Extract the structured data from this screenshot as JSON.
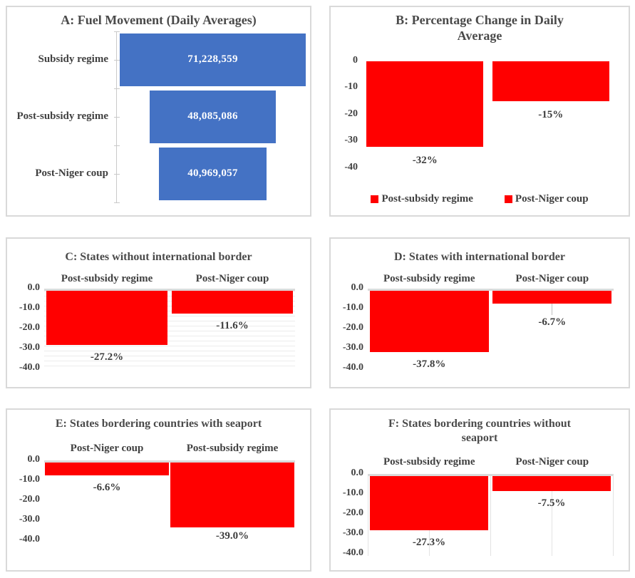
{
  "colors": {
    "bar_blue": "#4472C4",
    "bar_red": "#FF0000",
    "text_gray": "#404040",
    "panel_border": "#D9D9D9"
  },
  "chart_data": [
    {
      "id": "A",
      "type": "funnel",
      "title": "A: Fuel Movement (Daily Averages)",
      "categories": [
        "Subsidy regime",
        "Post-subsidy regime",
        "Post-Niger coup"
      ],
      "values": [
        71228559,
        48085086,
        40969057
      ],
      "value_labels": [
        "71,228,559",
        "48,085,086",
        "40,969,057"
      ],
      "bar_color": "#4472C4",
      "grid": "off",
      "legend_position": "none"
    },
    {
      "id": "B",
      "type": "bar",
      "title": "B: Percentage Change in Daily Average",
      "categories": [
        "Post-subsidy regime",
        "Post-Niger coup"
      ],
      "values": [
        -32,
        -15
      ],
      "value_labels": [
        "-32%",
        "-15%"
      ],
      "y_ticks": [
        "0",
        "-10",
        "-20",
        "-30",
        "-40"
      ],
      "ylim": [
        0,
        -40
      ],
      "ylabel": "",
      "xlabel": "",
      "legend": [
        "Post-subsidy regime",
        "Post-Niger coup"
      ],
      "legend_position": "bottom",
      "bar_color": "#FF0000",
      "grid": "off"
    },
    {
      "id": "C",
      "type": "bar",
      "title": "C: States without international border",
      "categories": [
        "Post-subsidy regime",
        "Post-Niger coup"
      ],
      "values": [
        -27.2,
        -11.6
      ],
      "value_labels": [
        "-27.2%",
        "-11.6%"
      ],
      "y_ticks": [
        "0.0",
        "-10.0",
        "-20.0",
        "-30.0",
        "-40.0"
      ],
      "ylim": [
        0,
        -40
      ],
      "ylabel": "",
      "xlabel": "",
      "legend_position": "none",
      "bar_color": "#FF0000",
      "grid": "horizontal-minor"
    },
    {
      "id": "D",
      "type": "bar",
      "title": "D: States with international border",
      "categories": [
        "Post-subsidy regime",
        "Post-Niger coup"
      ],
      "values": [
        -37.8,
        -6.7
      ],
      "value_labels": [
        "-37.8%",
        "-6.7%"
      ],
      "y_ticks": [
        "0.0",
        "-10.0",
        "-20.0",
        "-30.0",
        "-40.0"
      ],
      "ylim": [
        0,
        -40
      ],
      "ylabel": "",
      "xlabel": "",
      "legend_position": "none",
      "bar_color": "#FF0000",
      "grid": "off",
      "leader_line_on": "Post-Niger coup"
    },
    {
      "id": "E",
      "type": "bar",
      "title": "E: States bordering countries with seaport",
      "categories": [
        "Post-Niger coup",
        "Post-subsidy regime"
      ],
      "values": [
        -6.6,
        -39.0
      ],
      "value_labels": [
        "-6.6%",
        "-39.0%"
      ],
      "y_ticks": [
        "0.0",
        "-10.0",
        "-20.0",
        "-30.0",
        "-40.0"
      ],
      "ylim": [
        0,
        -40
      ],
      "ylabel": "",
      "xlabel": "",
      "legend_position": "none",
      "bar_color": "#FF0000",
      "grid": "off"
    },
    {
      "id": "F",
      "type": "bar",
      "title": "F: States bordering countries without seaport",
      "categories": [
        "Post-subsidy regime",
        "Post-Niger coup"
      ],
      "values": [
        -27.3,
        -7.5
      ],
      "value_labels": [
        "-27.3%",
        "-7.5%"
      ],
      "y_ticks": [
        "0.0",
        "-10.0",
        "-20.0",
        "-30.0",
        "-40.0"
      ],
      "ylim": [
        0,
        -40
      ],
      "ylabel": "",
      "xlabel": "",
      "legend_position": "none",
      "bar_color": "#FF0000",
      "grid": "vertical"
    }
  ]
}
